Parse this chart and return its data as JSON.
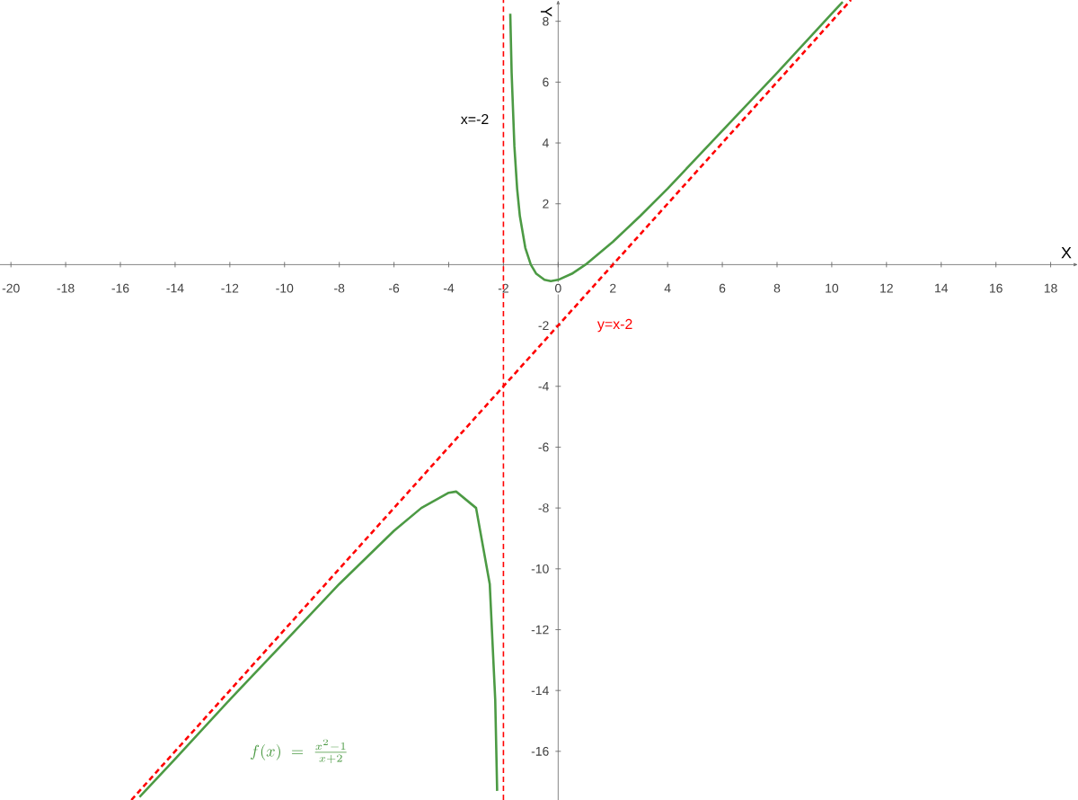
{
  "chart_data": {
    "type": "line",
    "xlabel": "X",
    "ylabel": "Y",
    "xlim": [
      -20.4,
      19
    ],
    "ylim": [
      -17.6,
      8.7
    ],
    "xticks": [
      -20,
      -18,
      -16,
      -14,
      -12,
      -10,
      -8,
      -6,
      -4,
      -2,
      0,
      2,
      4,
      6,
      8,
      10,
      12,
      14,
      16,
      18
    ],
    "yticks": [
      -16,
      -14,
      -12,
      -10,
      -8,
      -6,
      -4,
      -2,
      2,
      4,
      6,
      8
    ],
    "marker": "none",
    "series": [
      {
        "name": "f(x)\\ =\\ \\frac{x^{2}-1}{x+2}",
        "color": "#4c9a44",
        "line_style": "solid",
        "x": [
          -15.3,
          -14,
          -12,
          -10,
          -8,
          -6,
          -5,
          -4,
          -3.73,
          -3,
          -2.5,
          -2.3,
          -2.23,
          null,
          -1.75,
          -1.7,
          -1.6,
          -1.5,
          -1.4,
          -1.2,
          -1,
          -0.8,
          -0.5,
          -0.27,
          0,
          0.5,
          1,
          2,
          3,
          4,
          6,
          8,
          10,
          10.4
        ],
        "values": [
          -17.5,
          -16.25,
          -14.3,
          -12.4,
          -10.5,
          -8.75,
          -8,
          -7.5,
          -7.46,
          -8,
          -10.5,
          -14.3,
          -17.3,
          null,
          8.25,
          6.3,
          3.9,
          2.5,
          1.6,
          0.55,
          0,
          -0.3,
          -0.5,
          -0.54,
          -0.5,
          -0.3,
          0,
          0.75,
          1.6,
          2.5,
          4.4,
          6.3,
          8.25,
          8.64
        ]
      },
      {
        "name": "y=x-2",
        "color": "#ff0000",
        "line_style": "dashed",
        "x": [
          -15.6,
          10.7
        ],
        "values": [
          -17.6,
          8.7
        ]
      }
    ],
    "ref_lines": [
      {
        "axis": "x",
        "value": -2,
        "label": "x=-2",
        "color": "#ff0000",
        "line_style": "dashed"
      }
    ],
    "legend": false
  }
}
